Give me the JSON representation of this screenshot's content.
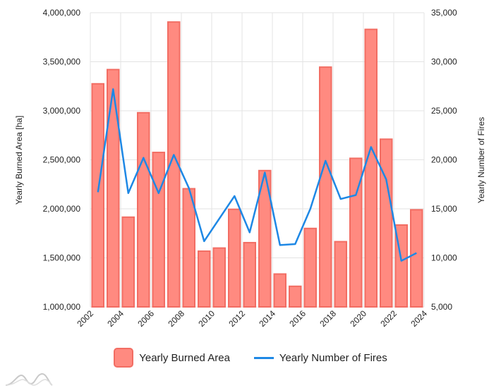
{
  "chart_data": {
    "type": "bar",
    "categories": [
      "2002",
      "2003",
      "2004",
      "2005",
      "2006",
      "2007",
      "2008",
      "2009",
      "2010",
      "2011",
      "2012",
      "2013",
      "2014",
      "2015",
      "2016",
      "2017",
      "2018",
      "2019",
      "2020",
      "2021",
      "2022",
      "2023"
    ],
    "x_tick_labels": [
      "2002",
      "2004",
      "2006",
      "2008",
      "2010",
      "2012",
      "2014",
      "2016",
      "2018",
      "2020",
      "2022",
      "2024"
    ],
    "series": [
      {
        "name": "Yearly Burned Area",
        "type": "bar",
        "axis": "left",
        "color": "#ff8a80",
        "stroke": "#f26d63",
        "values": [
          3275000,
          3420000,
          1915000,
          2980000,
          2575000,
          3905000,
          2205000,
          1568000,
          1600000,
          1995000,
          1655000,
          2390000,
          1335000,
          1210000,
          1800000,
          3445000,
          1665000,
          2515000,
          3830000,
          2710000,
          1835000,
          1990000
        ]
      },
      {
        "name": "Yearly Number of Fires",
        "type": "line",
        "axis": "right",
        "color": "#1e88e5",
        "values": [
          16700,
          27200,
          16600,
          20200,
          16600,
          20500,
          17100,
          11700,
          14000,
          16300,
          12600,
          18700,
          11300,
          11400,
          15000,
          19900,
          16000,
          16400,
          21300,
          18000,
          9700,
          10500
        ]
      }
    ],
    "y_left": {
      "label": "Yearly Burned Area [ha]",
      "min": 1000000,
      "max": 4000000,
      "tick_labels": [
        "1,000,000",
        "1,500,000",
        "2,000,000",
        "2,500,000",
        "3,000,000",
        "3,500,000",
        "4,000,000"
      ]
    },
    "y_right": {
      "label": "Yearly Number of Fires",
      "min": 5000,
      "max": 35000,
      "tick_labels": [
        "5,000",
        "10,000",
        "15,000",
        "20,000",
        "25,000",
        "30,000",
        "35,000"
      ]
    },
    "grid": true,
    "legend_placement": "bottom-center"
  },
  "legend": {
    "items": [
      {
        "label": "Yearly Burned Area",
        "kind": "bar",
        "color": "#ff8a80",
        "stroke": "#f26d63"
      },
      {
        "label": "Yearly Number of Fires",
        "kind": "line",
        "color": "#1e88e5"
      }
    ]
  },
  "logo": {
    "icon": "amcharts-logo-icon"
  }
}
